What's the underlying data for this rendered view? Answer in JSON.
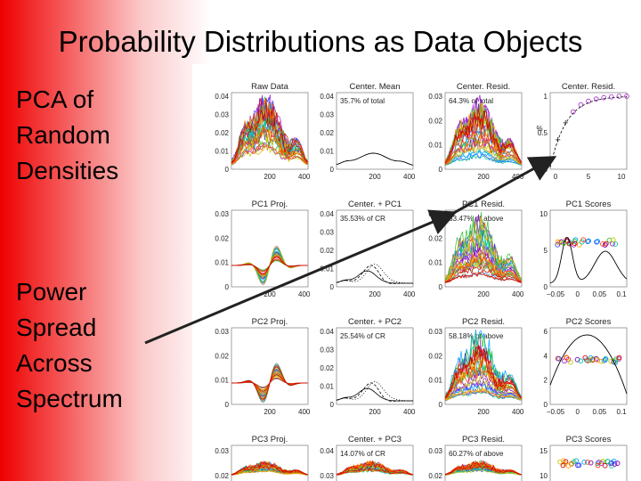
{
  "slide": {
    "title": "Probability Distributions as Data Objects",
    "bullet1": [
      "PCA of",
      "Random",
      "Densities"
    ],
    "bullet2": [
      "Power",
      "Spread",
      "Across",
      "Spectrum"
    ]
  },
  "colors": {
    "rainbow": [
      "#7a00b0",
      "#a020d0",
      "#3040ff",
      "#00a0ff",
      "#00c8a0",
      "#30c030",
      "#c8c800",
      "#ffa000",
      "#ff4000",
      "#d00000"
    ],
    "arrow": "#222222",
    "line": "#000000",
    "background_left": "#ee0000"
  },
  "chart_data": [
    {
      "type": "line",
      "title": "Raw Data",
      "y_ticks": [
        "0.04",
        "0.03",
        "0.02",
        "0.01",
        "0"
      ],
      "x_ticks": [
        "200",
        "400"
      ],
      "ylim": [
        0,
        0.04
      ],
      "xlim": [
        0,
        400
      ],
      "kind": "curves"
    },
    {
      "type": "line",
      "title": "Center. Mean",
      "annotation": "35.7% of total",
      "y_ticks": [
        "0.04",
        "0.03",
        "0.02",
        "0.01",
        "0"
      ],
      "x_ticks": [
        "200",
        "400"
      ],
      "ylim": [
        0,
        0.04
      ],
      "xlim": [
        0,
        400
      ],
      "kind": "mean"
    },
    {
      "type": "line",
      "title": "Center. Resid.",
      "annotation": "64.3% of total",
      "y_ticks": [
        "0.03",
        "0.02",
        "0.01",
        "0"
      ],
      "x_ticks": [
        "200",
        "400"
      ],
      "ylim": [
        0,
        0.035
      ],
      "xlim": [
        0,
        400
      ],
      "kind": "curves"
    },
    {
      "type": "scatter",
      "title": "Center. Resid.",
      "y_ticks": [
        "1",
        "0.5",
        "0"
      ],
      "x_ticks": [
        "0",
        "5",
        "10"
      ],
      "ylabel": "%",
      "ylim": [
        0,
        1
      ],
      "xlim": [
        0,
        10
      ],
      "kind": "scree"
    },
    {
      "type": "line",
      "title": "PC1 Proj.",
      "y_ticks": [
        "0.03",
        "0.02",
        "0.01",
        "0"
      ],
      "x_ticks": [
        "200",
        "400"
      ],
      "ylim": [
        0,
        0.035
      ],
      "xlim": [
        0,
        400
      ],
      "kind": "proj"
    },
    {
      "type": "line",
      "title": "Center. + PC1",
      "annotation": "35.53% of CR",
      "y_ticks": [
        "0.04",
        "0.03",
        "0.02",
        "0.01",
        "0"
      ],
      "x_ticks": [
        "200",
        "400"
      ],
      "ylim": [
        0,
        0.04
      ],
      "xlim": [
        0,
        400
      ],
      "kind": "centpc"
    },
    {
      "type": "line",
      "title": "PC1 Resid.",
      "annotation": "63.47% of above",
      "y_ticks": [
        "0.03",
        "0.02",
        "0.01",
        "0"
      ],
      "x_ticks": [
        "200",
        "400"
      ],
      "ylim": [
        0,
        0.035
      ],
      "xlim": [
        0,
        400
      ],
      "kind": "curves"
    },
    {
      "type": "scatter",
      "title": "PC1 Scores",
      "y_ticks": [
        "10",
        "5",
        "0"
      ],
      "x_ticks": [
        "−0.05",
        "0",
        "0.05",
        "0.1"
      ],
      "ylim": [
        0,
        12
      ],
      "xlim": [
        -0.05,
        0.1
      ],
      "kind": "scores"
    },
    {
      "type": "line",
      "title": "PC2 Proj.",
      "y_ticks": [
        "0.03",
        "0.02",
        "0.01",
        "0"
      ],
      "x_ticks": [
        "200",
        "400"
      ],
      "ylim": [
        0,
        0.035
      ],
      "xlim": [
        0,
        400
      ],
      "kind": "proj"
    },
    {
      "type": "line",
      "title": "Center. + PC2",
      "annotation": "25.54% of CR",
      "y_ticks": [
        "0.04",
        "0.03",
        "0.02",
        "0.01",
        "0"
      ],
      "x_ticks": [
        "200",
        "400"
      ],
      "ylim": [
        0,
        0.04
      ],
      "xlim": [
        0,
        400
      ],
      "kind": "centpc"
    },
    {
      "type": "line",
      "title": "PC2 Resid.",
      "annotation": "58.18% of above",
      "y_ticks": [
        "0.03",
        "0.02",
        "0.01",
        "0"
      ],
      "x_ticks": [
        "200",
        "400"
      ],
      "ylim": [
        0,
        0.035
      ],
      "xlim": [
        0,
        400
      ],
      "kind": "curves"
    },
    {
      "type": "scatter",
      "title": "PC2 Scores",
      "y_ticks": [
        "6",
        "4",
        "2",
        "0"
      ],
      "x_ticks": [
        "−0.05",
        "0",
        "0.05",
        "0.1"
      ],
      "ylim": [
        0,
        6.5
      ],
      "xlim": [
        -0.05,
        0.1
      ],
      "kind": "scores2"
    },
    {
      "type": "line",
      "title": "PC3 Proj.",
      "y_ticks": [
        "0.03",
        "0.02"
      ],
      "x_ticks": [],
      "ylim": [
        0,
        0.035
      ],
      "xlim": [
        0,
        400
      ],
      "kind": "partial"
    },
    {
      "type": "line",
      "title": "Center. + PC3",
      "annotation": "14.07% of CR",
      "y_ticks": [
        "0.04",
        "0.03",
        "0.02"
      ],
      "x_ticks": [],
      "ylim": [
        0,
        0.04
      ],
      "xlim": [
        0,
        400
      ],
      "kind": "partial"
    },
    {
      "type": "line",
      "title": "PC3 Resid.",
      "annotation": "60.27% of above",
      "y_ticks": [
        "0.03",
        "0.02"
      ],
      "x_ticks": [],
      "ylim": [
        0,
        0.035
      ],
      "xlim": [
        0,
        400
      ],
      "kind": "partial"
    },
    {
      "type": "scatter",
      "title": "PC3 Scores",
      "y_ticks": [
        "15",
        "10"
      ],
      "x_ticks": [],
      "ylim": [
        0,
        16
      ],
      "xlim": [
        -0.05,
        0.1
      ],
      "kind": "partialscores"
    }
  ]
}
